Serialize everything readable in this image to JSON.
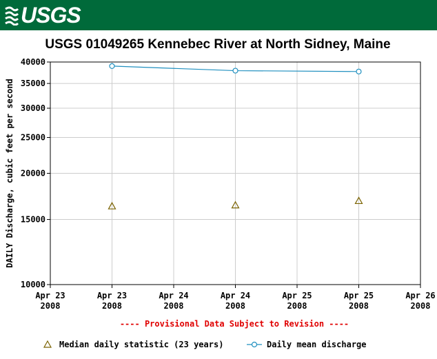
{
  "header": {
    "logo_text": "USGS"
  },
  "chart_data": {
    "type": "line",
    "title": "USGS 01049265 Kennebec River at North Sidney, Maine",
    "ylabel": "DAILY Discharge, cubic feet per second",
    "xlabel": "",
    "y_scale": "log",
    "ylim": [
      10000,
      40000
    ],
    "y_ticks": [
      10000,
      15000,
      20000,
      25000,
      30000,
      35000,
      40000
    ],
    "y_tick_labels": [
      "10000",
      "15000",
      "20000",
      "25000",
      "30000",
      "35000",
      "40000"
    ],
    "x_ticks": [
      {
        "line1": "Apr 23",
        "line2": "2008",
        "pos": 0.0
      },
      {
        "line1": "Apr 23",
        "line2": "2008",
        "pos": 0.5
      },
      {
        "line1": "Apr 24",
        "line2": "2008",
        "pos": 1.0
      },
      {
        "line1": "Apr 24",
        "line2": "2008",
        "pos": 1.5
      },
      {
        "line1": "Apr 25",
        "line2": "2008",
        "pos": 2.0
      },
      {
        "line1": "Apr 25",
        "line2": "2008",
        "pos": 2.5
      },
      {
        "line1": "Apr 26",
        "line2": "2008",
        "pos": 3.0
      }
    ],
    "xlim": [
      0,
      3
    ],
    "grid": true,
    "series": [
      {
        "name": "Daily mean discharge",
        "color": "#1f8fbf",
        "marker": "circle",
        "line": true,
        "points": [
          {
            "x": 0.5,
            "y": 39000
          },
          {
            "x": 1.5,
            "y": 37900
          },
          {
            "x": 2.5,
            "y": 37700
          }
        ]
      },
      {
        "name": "Median daily statistic (23 years)",
        "color": "#7a6200",
        "marker": "triangle",
        "line": false,
        "points": [
          {
            "x": 0.5,
            "y": 16300
          },
          {
            "x": 1.5,
            "y": 16400
          },
          {
            "x": 2.5,
            "y": 16850
          }
        ]
      }
    ],
    "annotation": "---- Provisional Data Subject to Revision ----",
    "annotation_color": "#e00000",
    "legend": [
      {
        "label": "Median daily statistic (23 years)",
        "marker": "triangle",
        "color": "#7a6200"
      },
      {
        "label": "Daily mean discharge",
        "marker": "circle",
        "color": "#1f8fbf"
      }
    ],
    "legend_position": "bottom"
  }
}
